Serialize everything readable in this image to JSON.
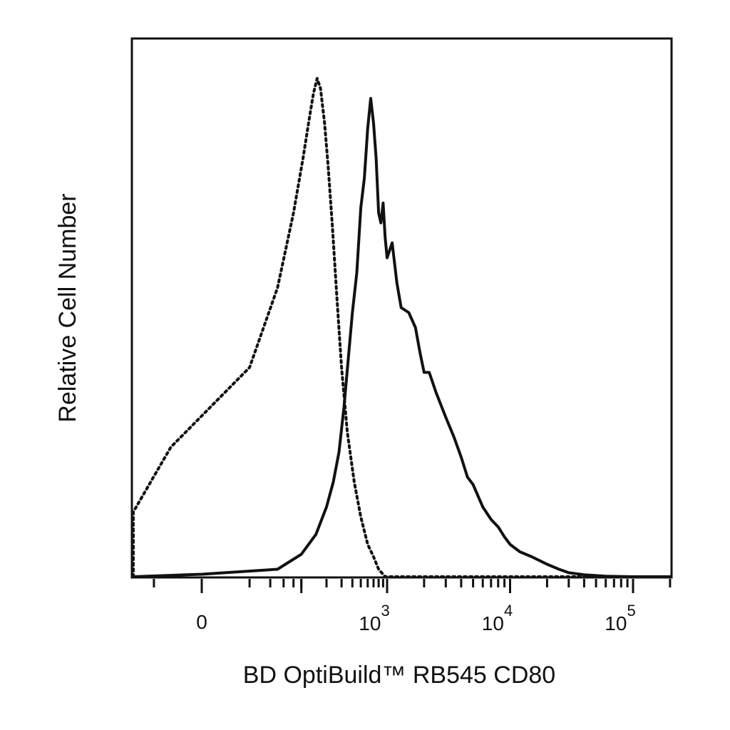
{
  "chart_data": {
    "type": "line",
    "title": "",
    "xlabel": "BD OptiBuild™ RB545 CD80",
    "ylabel": "Relative Cell Number",
    "x_scale": "biexponential",
    "x_tick_labels": [
      {
        "base": "0",
        "exp": "",
        "value": 0
      },
      {
        "base": "10",
        "exp": "3",
        "value": 1000
      },
      {
        "base": "10",
        "exp": "4",
        "value": 10000
      },
      {
        "base": "10",
        "exp": "5",
        "value": 100000
      }
    ],
    "y_ticks_shown": false,
    "grid": false,
    "legend": "none",
    "series": [
      {
        "style": "dotted",
        "color": "#111111",
        "points": [
          [
            -300,
            0
          ],
          [
            -150,
            0.5
          ],
          [
            -80,
            4
          ],
          [
            -40,
            13
          ],
          [
            -10,
            26
          ],
          [
            20,
            42
          ],
          [
            50,
            58
          ],
          [
            80,
            73
          ],
          [
            105,
            84
          ],
          [
            125,
            92
          ],
          [
            140,
            97
          ],
          [
            155,
            100
          ],
          [
            170,
            98
          ],
          [
            190,
            91
          ],
          [
            210,
            82
          ],
          [
            235,
            70
          ],
          [
            265,
            56
          ],
          [
            300,
            42
          ],
          [
            350,
            29
          ],
          [
            420,
            19
          ],
          [
            500,
            12
          ],
          [
            600,
            6.5
          ],
          [
            700,
            4
          ],
          [
            800,
            1.5
          ],
          [
            950,
            0
          ],
          [
            100000,
            0
          ],
          [
            300000,
            0
          ]
        ]
      },
      {
        "style": "solid",
        "color": "#111111",
        "points": [
          [
            -300,
            0
          ],
          [
            -200,
            0
          ],
          [
            0,
            0.5
          ],
          [
            50,
            1.5
          ],
          [
            100,
            4.5
          ],
          [
            150,
            8.5
          ],
          [
            200,
            14
          ],
          [
            240,
            19
          ],
          [
            280,
            25
          ],
          [
            320,
            34
          ],
          [
            360,
            44
          ],
          [
            400,
            53
          ],
          [
            450,
            61
          ],
          [
            500,
            74
          ],
          [
            550,
            80
          ],
          [
            600,
            90
          ],
          [
            650,
            96
          ],
          [
            700,
            91
          ],
          [
            750,
            84
          ],
          [
            800,
            73
          ],
          [
            850,
            71
          ],
          [
            900,
            75
          ],
          [
            950,
            68
          ],
          [
            1000,
            64
          ],
          [
            1100,
            67
          ],
          [
            1200,
            59
          ],
          [
            1300,
            54
          ],
          [
            1500,
            53
          ],
          [
            1700,
            50
          ],
          [
            1850,
            45
          ],
          [
            2000,
            41
          ],
          [
            2200,
            41
          ],
          [
            2500,
            37
          ],
          [
            3000,
            32
          ],
          [
            3500,
            28
          ],
          [
            4000,
            24
          ],
          [
            4500,
            20
          ],
          [
            5000,
            18.5
          ],
          [
            6000,
            14
          ],
          [
            7000,
            11.5
          ],
          [
            8000,
            10
          ],
          [
            9000,
            8
          ],
          [
            10000,
            6.5
          ],
          [
            12000,
            5
          ],
          [
            15000,
            4
          ],
          [
            20000,
            2.5
          ],
          [
            25000,
            1.5
          ],
          [
            30000,
            0.8
          ],
          [
            40000,
            0.4
          ],
          [
            60000,
            0.1
          ],
          [
            100000,
            0
          ],
          [
            300000,
            0
          ]
        ]
      }
    ]
  }
}
